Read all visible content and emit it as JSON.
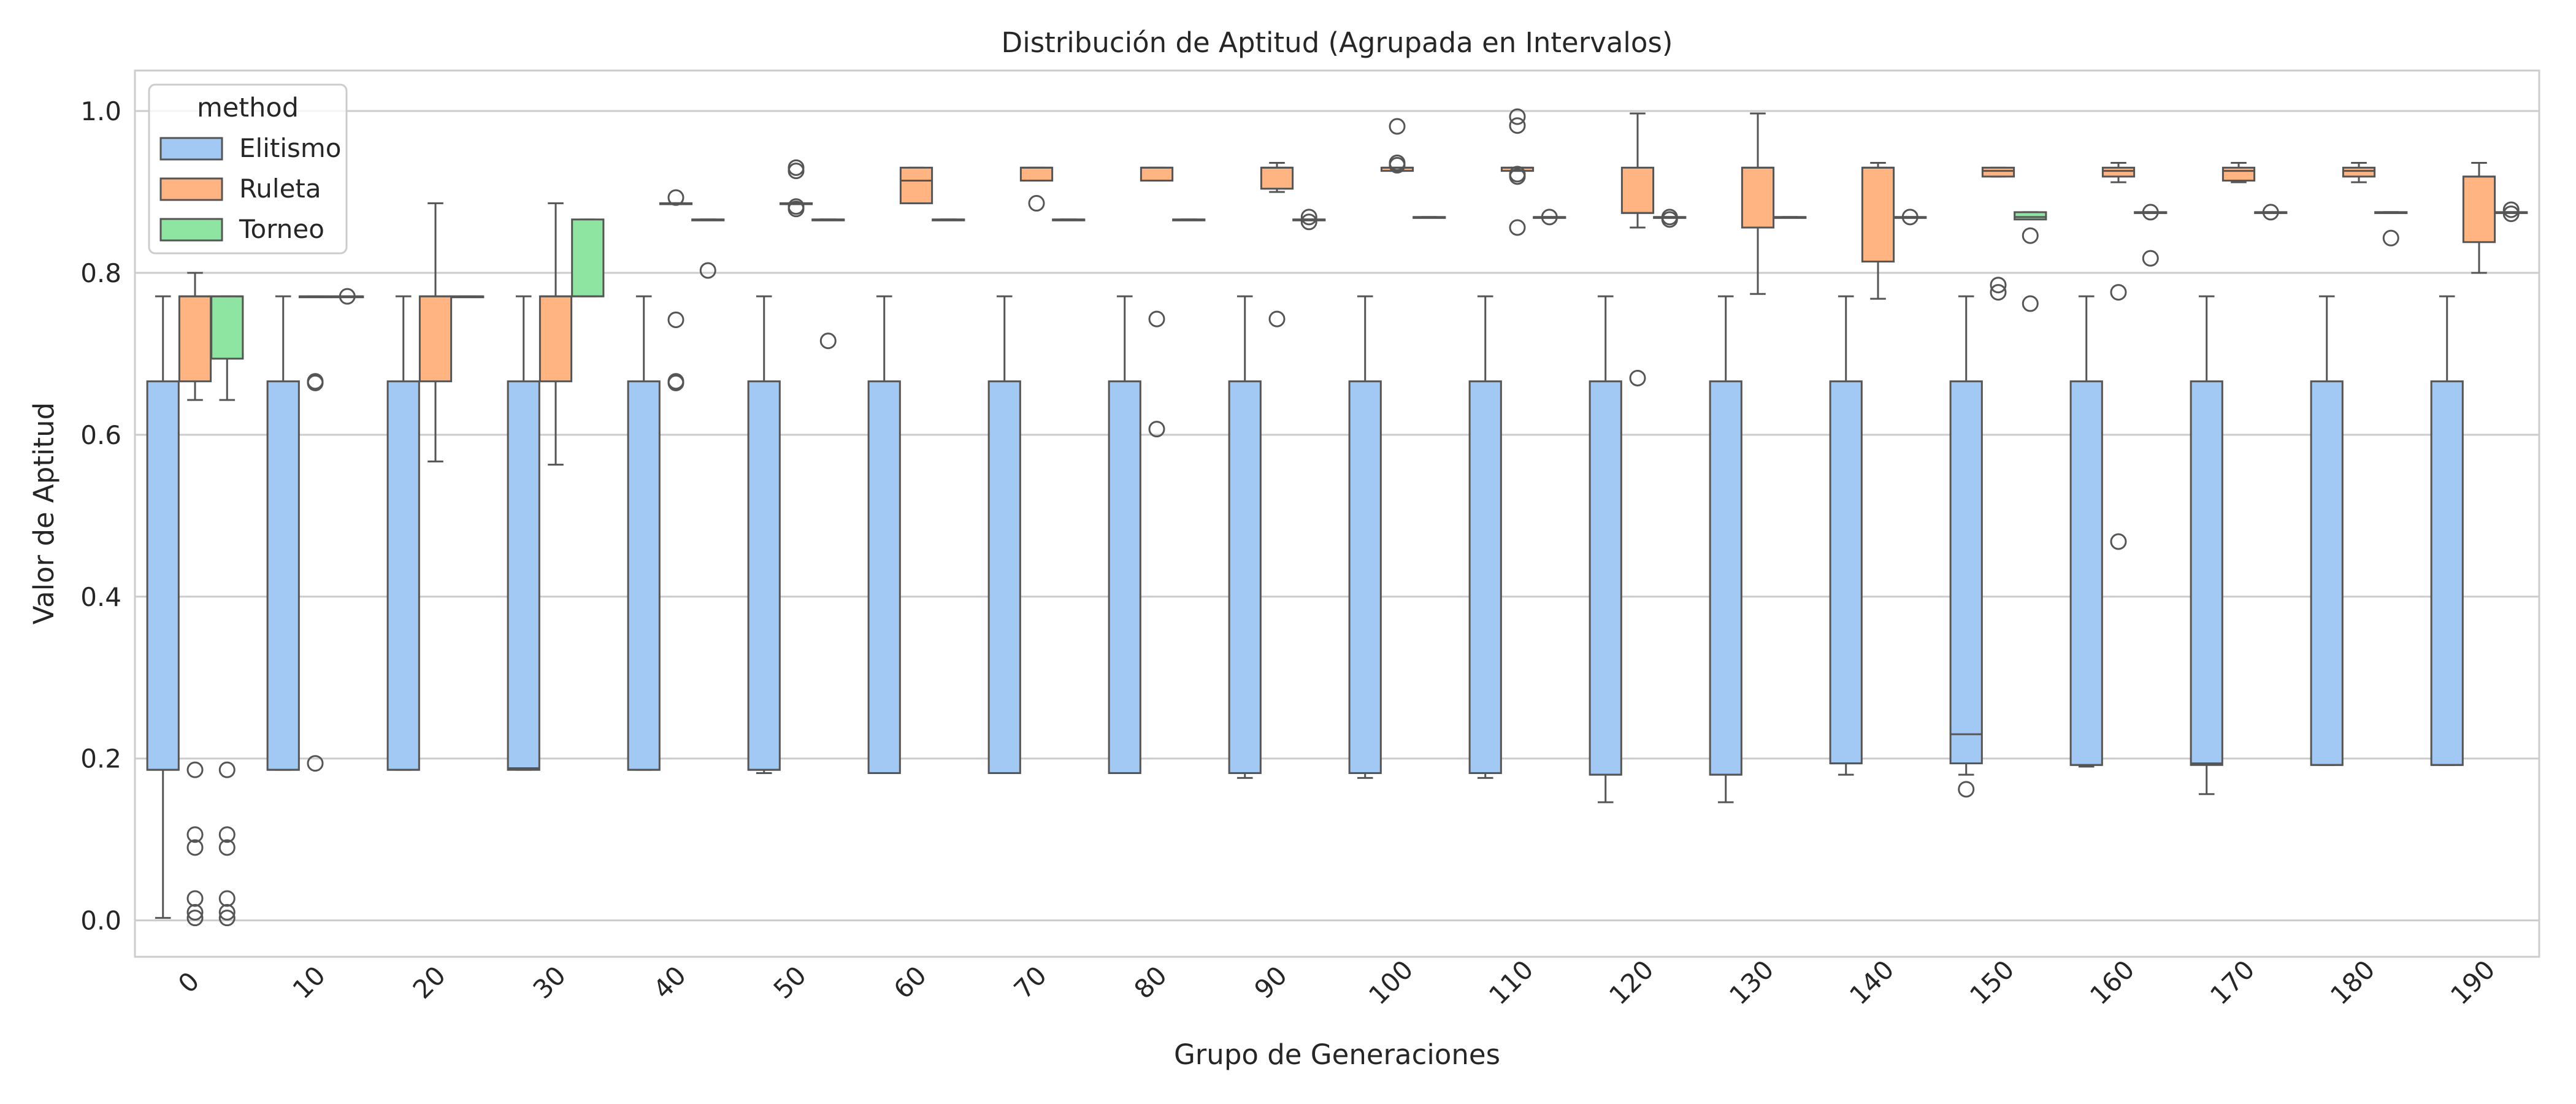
{
  "chart_data": {
    "type": "box",
    "title": "Distribución de Aptitud (Agrupada en Intervalos)",
    "xlabel": "Grupo de Generaciones",
    "ylabel": "Valor de Aptitud",
    "ylim": [
      -0.045,
      1.05
    ],
    "yticks": [
      0.0,
      0.2,
      0.4,
      0.6,
      0.8,
      1.0
    ],
    "ytick_labels": [
      "0.0",
      "0.2",
      "0.4",
      "0.6",
      "0.8",
      "1.0"
    ],
    "grid": true,
    "legend": {
      "title": "method",
      "position": "top-left"
    },
    "categories": [
      "0",
      "10",
      "20",
      "30",
      "40",
      "50",
      "60",
      "70",
      "80",
      "90",
      "100",
      "110",
      "120",
      "130",
      "140",
      "150",
      "160",
      "170",
      "180",
      "190"
    ],
    "series": [
      {
        "name": "Elitismo",
        "color": "#a1c9f4",
        "boxes": [
          {
            "wlo": 0.003,
            "q1": 0.186,
            "med": 0.186,
            "q3": 0.666,
            "whi": 0.771,
            "outliers": []
          },
          {
            "wlo": 0.186,
            "q1": 0.186,
            "med": 0.186,
            "q3": 0.666,
            "whi": 0.771,
            "outliers": []
          },
          {
            "wlo": 0.186,
            "q1": 0.186,
            "med": 0.186,
            "q3": 0.666,
            "whi": 0.771,
            "outliers": []
          },
          {
            "wlo": 0.186,
            "q1": 0.186,
            "med": 0.188,
            "q3": 0.666,
            "whi": 0.771,
            "outliers": []
          },
          {
            "wlo": 0.186,
            "q1": 0.186,
            "med": 0.186,
            "q3": 0.666,
            "whi": 0.771,
            "outliers": []
          },
          {
            "wlo": 0.182,
            "q1": 0.186,
            "med": 0.186,
            "q3": 0.666,
            "whi": 0.771,
            "outliers": []
          },
          {
            "wlo": 0.182,
            "q1": 0.182,
            "med": 0.182,
            "q3": 0.666,
            "whi": 0.771,
            "outliers": []
          },
          {
            "wlo": 0.182,
            "q1": 0.182,
            "med": 0.182,
            "q3": 0.666,
            "whi": 0.771,
            "outliers": []
          },
          {
            "wlo": 0.182,
            "q1": 0.182,
            "med": 0.182,
            "q3": 0.666,
            "whi": 0.771,
            "outliers": []
          },
          {
            "wlo": 0.176,
            "q1": 0.182,
            "med": 0.182,
            "q3": 0.666,
            "whi": 0.771,
            "outliers": []
          },
          {
            "wlo": 0.176,
            "q1": 0.182,
            "med": 0.182,
            "q3": 0.666,
            "whi": 0.771,
            "outliers": []
          },
          {
            "wlo": 0.176,
            "q1": 0.182,
            "med": 0.182,
            "q3": 0.666,
            "whi": 0.771,
            "outliers": []
          },
          {
            "wlo": 0.146,
            "q1": 0.18,
            "med": 0.18,
            "q3": 0.666,
            "whi": 0.771,
            "outliers": []
          },
          {
            "wlo": 0.146,
            "q1": 0.18,
            "med": 0.18,
            "q3": 0.666,
            "whi": 0.771,
            "outliers": []
          },
          {
            "wlo": 0.18,
            "q1": 0.194,
            "med": 0.194,
            "q3": 0.666,
            "whi": 0.771,
            "outliers": []
          },
          {
            "wlo": 0.18,
            "q1": 0.194,
            "med": 0.23,
            "q3": 0.666,
            "whi": 0.771,
            "outliers": [
              0.162
            ]
          },
          {
            "wlo": 0.19,
            "q1": 0.192,
            "med": 0.192,
            "q3": 0.666,
            "whi": 0.771,
            "outliers": []
          },
          {
            "wlo": 0.156,
            "q1": 0.192,
            "med": 0.194,
            "q3": 0.666,
            "whi": 0.771,
            "outliers": []
          },
          {
            "wlo": 0.192,
            "q1": 0.192,
            "med": 0.192,
            "q3": 0.666,
            "whi": 0.771,
            "outliers": []
          },
          {
            "wlo": 0.192,
            "q1": 0.192,
            "med": 0.192,
            "q3": 0.666,
            "whi": 0.771,
            "outliers": []
          }
        ]
      },
      {
        "name": "Ruleta",
        "color": "#ffb482",
        "boxes": [
          {
            "wlo": 0.643,
            "q1": 0.666,
            "med": 0.771,
            "q3": 0.771,
            "whi": 0.8,
            "outliers": [
              0.186,
              0.106,
              0.09,
              0.027,
              0.01,
              0.003
            ]
          },
          {
            "wlo": 0.771,
            "q1": 0.771,
            "med": 0.771,
            "q3": 0.771,
            "whi": 0.771,
            "outliers": [
              0.666,
              0.664,
              0.194
            ]
          },
          {
            "wlo": 0.567,
            "q1": 0.666,
            "med": 0.771,
            "q3": 0.771,
            "whi": 0.886,
            "outliers": []
          },
          {
            "wlo": 0.563,
            "q1": 0.666,
            "med": 0.771,
            "q3": 0.771,
            "whi": 0.886,
            "outliers": []
          },
          {
            "wlo": 0.886,
            "q1": 0.886,
            "med": 0.886,
            "q3": 0.886,
            "whi": 0.886,
            "outliers": [
              0.893,
              0.742,
              0.666,
              0.664
            ]
          },
          {
            "wlo": 0.886,
            "q1": 0.886,
            "med": 0.886,
            "q3": 0.886,
            "whi": 0.886,
            "outliers": [
              0.93,
              0.926,
              0.882,
              0.879
            ]
          },
          {
            "wlo": 0.886,
            "q1": 0.886,
            "med": 0.914,
            "q3": 0.93,
            "whi": 0.93,
            "outliers": []
          },
          {
            "wlo": 0.914,
            "q1": 0.914,
            "med": 0.93,
            "q3": 0.93,
            "whi": 0.93,
            "outliers": [
              0.886
            ]
          },
          {
            "wlo": 0.914,
            "q1": 0.914,
            "med": 0.93,
            "q3": 0.93,
            "whi": 0.93,
            "outliers": [
              0.743,
              0.607
            ]
          },
          {
            "wlo": 0.9,
            "q1": 0.904,
            "med": 0.93,
            "q3": 0.93,
            "whi": 0.936,
            "outliers": [
              0.743
            ]
          },
          {
            "wlo": 0.926,
            "q1": 0.926,
            "med": 0.93,
            "q3": 0.93,
            "whi": 0.93,
            "outliers": [
              0.981,
              0.936,
              0.933
            ]
          },
          {
            "wlo": 0.926,
            "q1": 0.926,
            "med": 0.93,
            "q3": 0.93,
            "whi": 0.93,
            "outliers": [
              0.993,
              0.982,
              0.922,
              0.919,
              0.856
            ]
          },
          {
            "wlo": 0.856,
            "q1": 0.874,
            "med": 0.874,
            "q3": 0.93,
            "whi": 0.997,
            "outliers": [
              0.67
            ]
          },
          {
            "wlo": 0.774,
            "q1": 0.856,
            "med": 0.93,
            "q3": 0.93,
            "whi": 0.997,
            "outliers": []
          },
          {
            "wlo": 0.768,
            "q1": 0.814,
            "med": 0.93,
            "q3": 0.93,
            "whi": 0.936,
            "outliers": []
          },
          {
            "wlo": 0.919,
            "q1": 0.919,
            "med": 0.926,
            "q3": 0.93,
            "whi": 0.93,
            "outliers": [
              0.785,
              0.776
            ]
          },
          {
            "wlo": 0.912,
            "q1": 0.919,
            "med": 0.926,
            "q3": 0.93,
            "whi": 0.936,
            "outliers": [
              0.776,
              0.468
            ]
          },
          {
            "wlo": 0.912,
            "q1": 0.914,
            "med": 0.926,
            "q3": 0.93,
            "whi": 0.936,
            "outliers": []
          },
          {
            "wlo": 0.912,
            "q1": 0.919,
            "med": 0.926,
            "q3": 0.93,
            "whi": 0.936,
            "outliers": []
          },
          {
            "wlo": 0.8,
            "q1": 0.838,
            "med": 0.919,
            "q3": 0.919,
            "whi": 0.936,
            "outliers": []
          }
        ]
      },
      {
        "name": "Torneo",
        "color": "#8de5a1",
        "boxes": [
          {
            "wlo": 0.643,
            "q1": 0.694,
            "med": 0.771,
            "q3": 0.771,
            "whi": 0.771,
            "outliers": [
              0.186,
              0.106,
              0.09,
              0.027,
              0.01,
              0.003
            ]
          },
          {
            "wlo": 0.771,
            "q1": 0.771,
            "med": 0.771,
            "q3": 0.771,
            "whi": 0.771,
            "outliers": [
              0.771
            ]
          },
          {
            "wlo": 0.771,
            "q1": 0.771,
            "med": 0.771,
            "q3": 0.771,
            "whi": 0.771,
            "outliers": []
          },
          {
            "wlo": 0.771,
            "q1": 0.771,
            "med": 0.771,
            "q3": 0.866,
            "whi": 0.866,
            "outliers": []
          },
          {
            "wlo": 0.866,
            "q1": 0.866,
            "med": 0.866,
            "q3": 0.866,
            "whi": 0.866,
            "outliers": [
              0.803
            ]
          },
          {
            "wlo": 0.866,
            "q1": 0.866,
            "med": 0.866,
            "q3": 0.866,
            "whi": 0.866,
            "outliers": [
              0.716
            ]
          },
          {
            "wlo": 0.866,
            "q1": 0.866,
            "med": 0.866,
            "q3": 0.866,
            "whi": 0.866,
            "outliers": []
          },
          {
            "wlo": 0.866,
            "q1": 0.866,
            "med": 0.866,
            "q3": 0.866,
            "whi": 0.866,
            "outliers": []
          },
          {
            "wlo": 0.866,
            "q1": 0.866,
            "med": 0.866,
            "q3": 0.866,
            "whi": 0.866,
            "outliers": []
          },
          {
            "wlo": 0.866,
            "q1": 0.866,
            "med": 0.866,
            "q3": 0.866,
            "whi": 0.866,
            "outliers": [
              0.869,
              0.863
            ]
          },
          {
            "wlo": 0.869,
            "q1": 0.869,
            "med": 0.869,
            "q3": 0.869,
            "whi": 0.869,
            "outliers": []
          },
          {
            "wlo": 0.869,
            "q1": 0.869,
            "med": 0.869,
            "q3": 0.869,
            "whi": 0.869,
            "outliers": [
              0.869
            ]
          },
          {
            "wlo": 0.869,
            "q1": 0.869,
            "med": 0.869,
            "q3": 0.869,
            "whi": 0.869,
            "outliers": [
              0.869,
              0.866
            ]
          },
          {
            "wlo": 0.869,
            "q1": 0.869,
            "med": 0.869,
            "q3": 0.869,
            "whi": 0.869,
            "outliers": []
          },
          {
            "wlo": 0.869,
            "q1": 0.869,
            "med": 0.869,
            "q3": 0.869,
            "whi": 0.869,
            "outliers": [
              0.869
            ]
          },
          {
            "wlo": 0.869,
            "q1": 0.866,
            "med": 0.869,
            "q3": 0.875,
            "whi": 0.875,
            "outliers": [
              0.846,
              0.762
            ]
          },
          {
            "wlo": 0.875,
            "q1": 0.875,
            "med": 0.875,
            "q3": 0.875,
            "whi": 0.875,
            "outliers": [
              0.875,
              0.818
            ]
          },
          {
            "wlo": 0.875,
            "q1": 0.875,
            "med": 0.875,
            "q3": 0.875,
            "whi": 0.875,
            "outliers": [
              0.875
            ]
          },
          {
            "wlo": 0.875,
            "q1": 0.875,
            "med": 0.875,
            "q3": 0.875,
            "whi": 0.875,
            "outliers": [
              0.843
            ]
          },
          {
            "wlo": 0.875,
            "q1": 0.875,
            "med": 0.875,
            "q3": 0.875,
            "whi": 0.875,
            "outliers": [
              0.878,
              0.873
            ]
          }
        ]
      }
    ]
  }
}
